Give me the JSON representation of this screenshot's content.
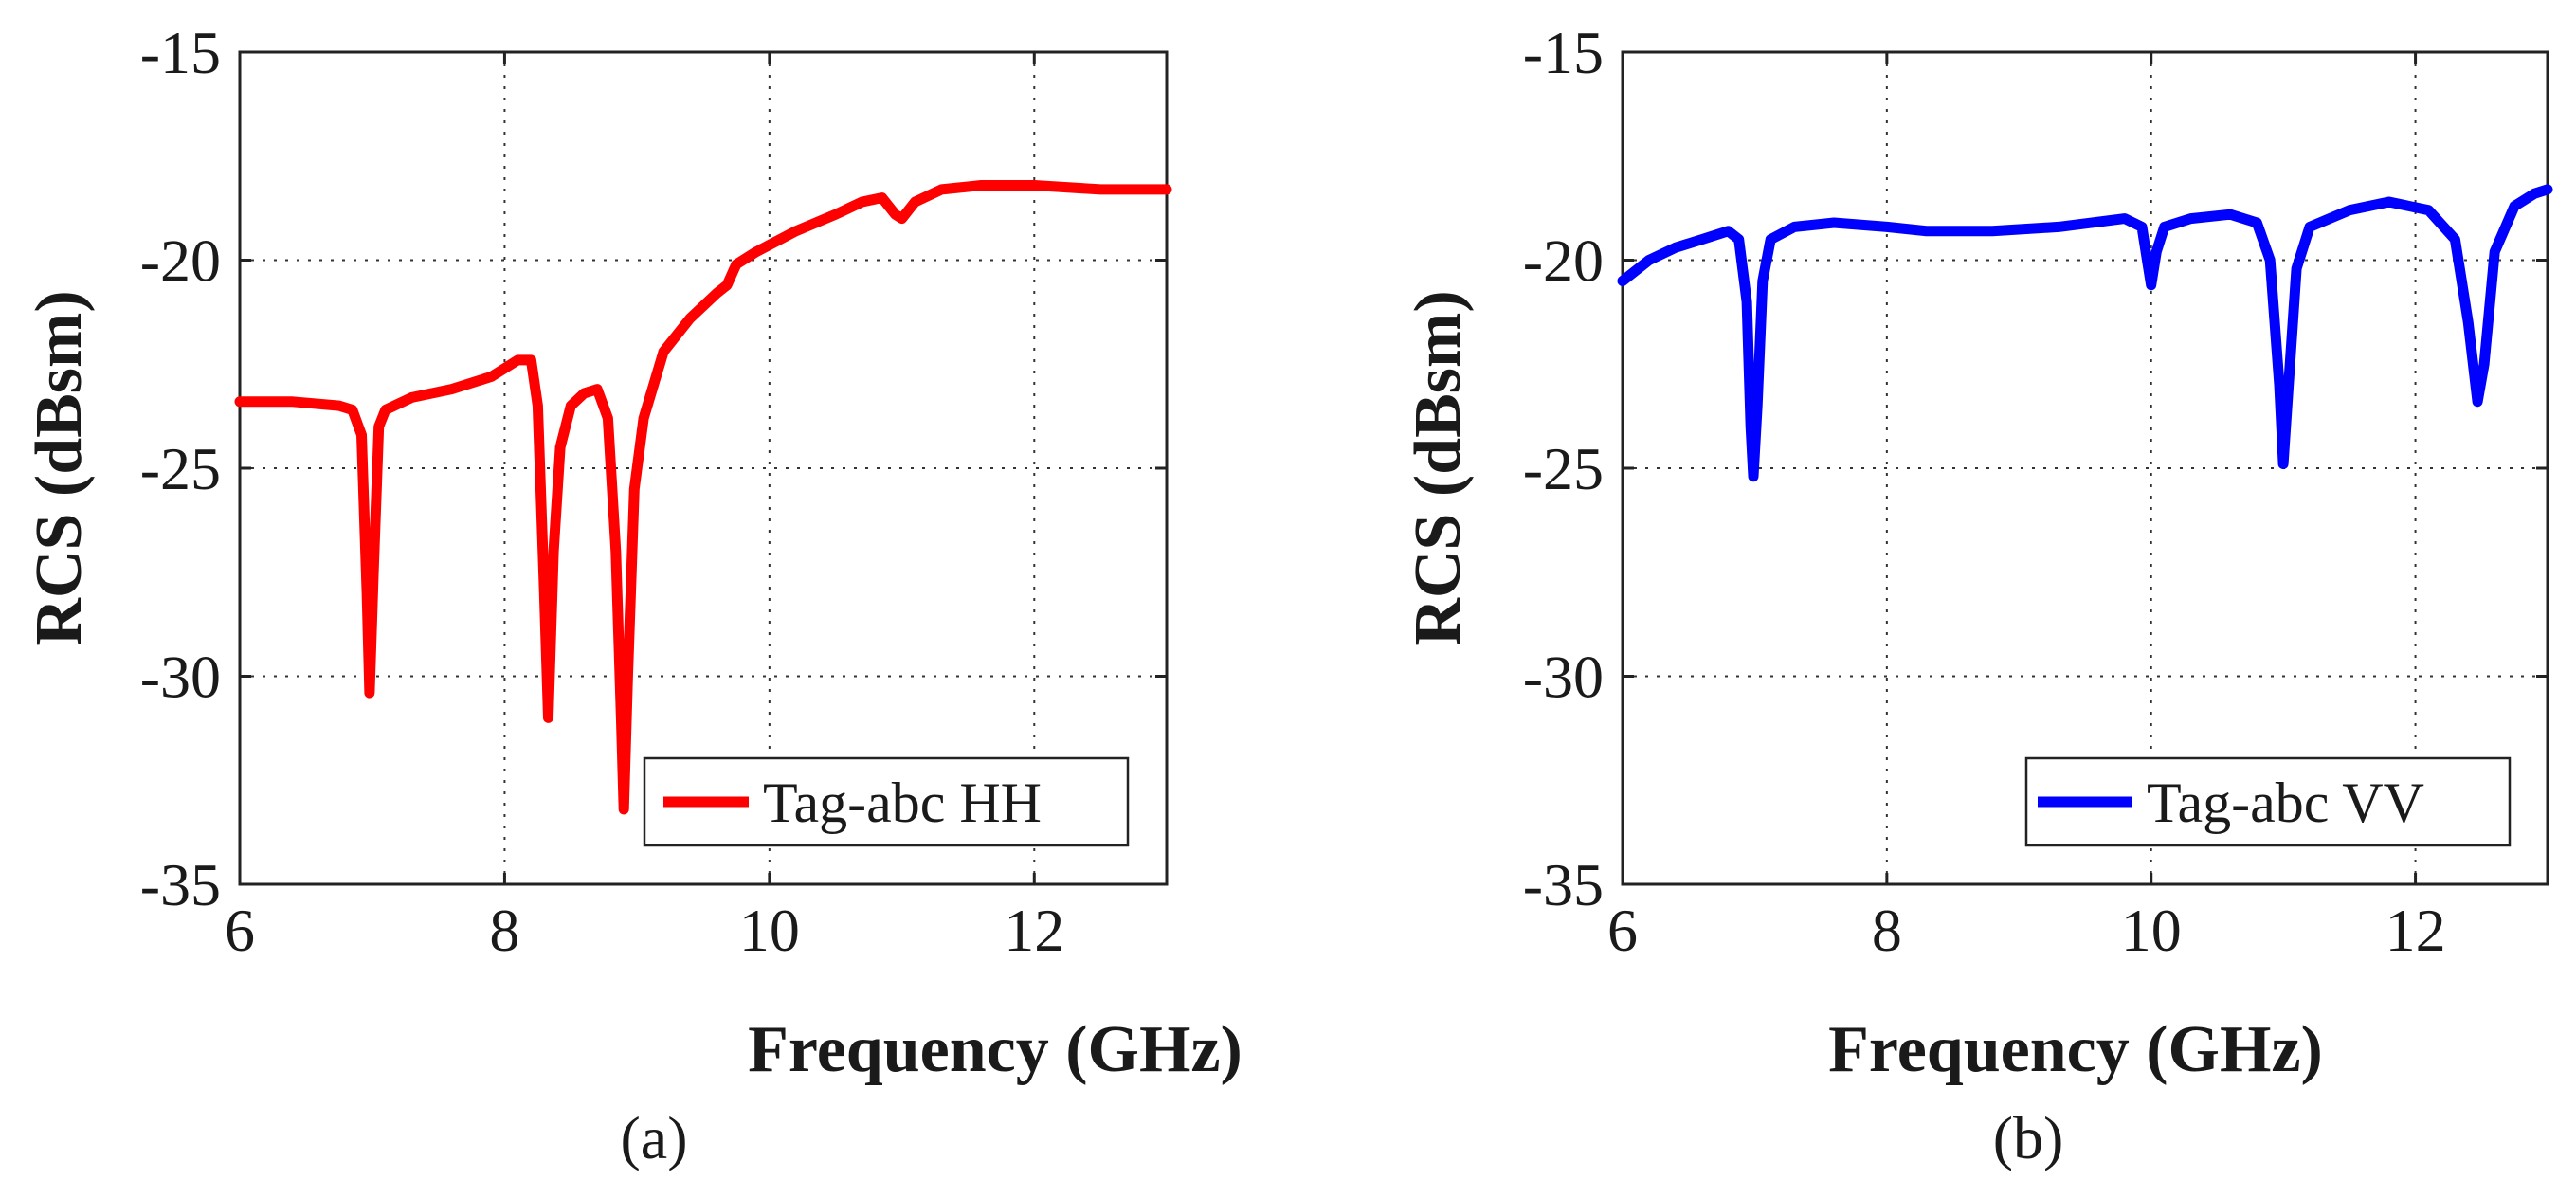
{
  "chart_data": [
    {
      "type": "line",
      "panel_label": "(a)",
      "title": "",
      "xlabel": "Frequency (GHz)",
      "ylabel": "RCS (dBsm)",
      "xlim": [
        6,
        13
      ],
      "ylim": [
        -35,
        -15
      ],
      "x_ticks": [
        6,
        8,
        10,
        12
      ],
      "y_ticks": [
        -15,
        -20,
        -25,
        -30,
        -35
      ],
      "grid": true,
      "legend_position": "bottom-right",
      "series": [
        {
          "name": "Tag-abc HH",
          "color": "#ff0000",
          "points": [
            [
              6.0,
              -23.4
            ],
            [
              6.4,
              -23.4
            ],
            [
              6.75,
              -23.5
            ],
            [
              6.85,
              -23.6
            ],
            [
              6.92,
              -24.2
            ],
            [
              6.96,
              -28.0
            ],
            [
              6.98,
              -30.4
            ],
            [
              7.01,
              -27.5
            ],
            [
              7.05,
              -24.0
            ],
            [
              7.1,
              -23.6
            ],
            [
              7.3,
              -23.3
            ],
            [
              7.6,
              -23.1
            ],
            [
              7.9,
              -22.8
            ],
            [
              8.1,
              -22.4
            ],
            [
              8.2,
              -22.4
            ],
            [
              8.25,
              -23.5
            ],
            [
              8.3,
              -28.0
            ],
            [
              8.33,
              -31.0
            ],
            [
              8.37,
              -27.0
            ],
            [
              8.42,
              -24.5
            ],
            [
              8.5,
              -23.5
            ],
            [
              8.6,
              -23.2
            ],
            [
              8.7,
              -23.1
            ],
            [
              8.78,
              -23.8
            ],
            [
              8.84,
              -27.0
            ],
            [
              8.88,
              -31.0
            ],
            [
              8.9,
              -33.2
            ],
            [
              8.93,
              -30.0
            ],
            [
              8.98,
              -25.5
            ],
            [
              9.05,
              -23.8
            ],
            [
              9.2,
              -22.2
            ],
            [
              9.4,
              -21.4
            ],
            [
              9.6,
              -20.8
            ],
            [
              9.68,
              -20.6
            ],
            [
              9.75,
              -20.1
            ],
            [
              9.9,
              -19.8
            ],
            [
              10.2,
              -19.3
            ],
            [
              10.5,
              -18.9
            ],
            [
              10.7,
              -18.6
            ],
            [
              10.85,
              -18.5
            ],
            [
              10.95,
              -18.9
            ],
            [
              11.0,
              -19.0
            ],
            [
              11.1,
              -18.6
            ],
            [
              11.3,
              -18.3
            ],
            [
              11.6,
              -18.2
            ],
            [
              12.0,
              -18.2
            ],
            [
              12.5,
              -18.3
            ],
            [
              13.0,
              -18.3
            ]
          ]
        }
      ]
    },
    {
      "type": "line",
      "panel_label": "(b)",
      "title": "",
      "xlabel": "Frequency (GHz)",
      "ylabel": "RCS (dBsm)",
      "xlim": [
        6,
        13
      ],
      "ylim": [
        -35,
        -15
      ],
      "x_ticks": [
        6,
        8,
        10,
        12
      ],
      "y_ticks": [
        -15,
        -20,
        -25,
        -30,
        -35
      ],
      "grid": true,
      "legend_position": "bottom-right",
      "series": [
        {
          "name": "Tag-abc VV",
          "color": "#0000ff",
          "points": [
            [
              6.0,
              -20.5
            ],
            [
              6.2,
              -20.0
            ],
            [
              6.4,
              -19.7
            ],
            [
              6.6,
              -19.5
            ],
            [
              6.8,
              -19.3
            ],
            [
              6.88,
              -19.5
            ],
            [
              6.94,
              -21.0
            ],
            [
              6.97,
              -24.0
            ],
            [
              6.99,
              -25.2
            ],
            [
              7.02,
              -23.5
            ],
            [
              7.06,
              -20.5
            ],
            [
              7.12,
              -19.5
            ],
            [
              7.3,
              -19.2
            ],
            [
              7.6,
              -19.1
            ],
            [
              8.0,
              -19.2
            ],
            [
              8.3,
              -19.3
            ],
            [
              8.8,
              -19.3
            ],
            [
              9.3,
              -19.2
            ],
            [
              9.8,
              -19.0
            ],
            [
              9.93,
              -19.2
            ],
            [
              9.97,
              -20.0
            ],
            [
              10.0,
              -20.6
            ],
            [
              10.04,
              -19.8
            ],
            [
              10.1,
              -19.2
            ],
            [
              10.3,
              -19.0
            ],
            [
              10.6,
              -18.9
            ],
            [
              10.8,
              -19.1
            ],
            [
              10.9,
              -20.0
            ],
            [
              10.97,
              -23.0
            ],
            [
              11.0,
              -24.9
            ],
            [
              11.04,
              -23.0
            ],
            [
              11.1,
              -20.2
            ],
            [
              11.2,
              -19.2
            ],
            [
              11.5,
              -18.8
            ],
            [
              11.8,
              -18.6
            ],
            [
              12.1,
              -18.8
            ],
            [
              12.3,
              -19.5
            ],
            [
              12.4,
              -21.5
            ],
            [
              12.47,
              -23.4
            ],
            [
              12.52,
              -22.5
            ],
            [
              12.6,
              -19.8
            ],
            [
              12.75,
              -18.7
            ],
            [
              12.9,
              -18.4
            ],
            [
              13.0,
              -18.3
            ]
          ]
        }
      ]
    }
  ]
}
